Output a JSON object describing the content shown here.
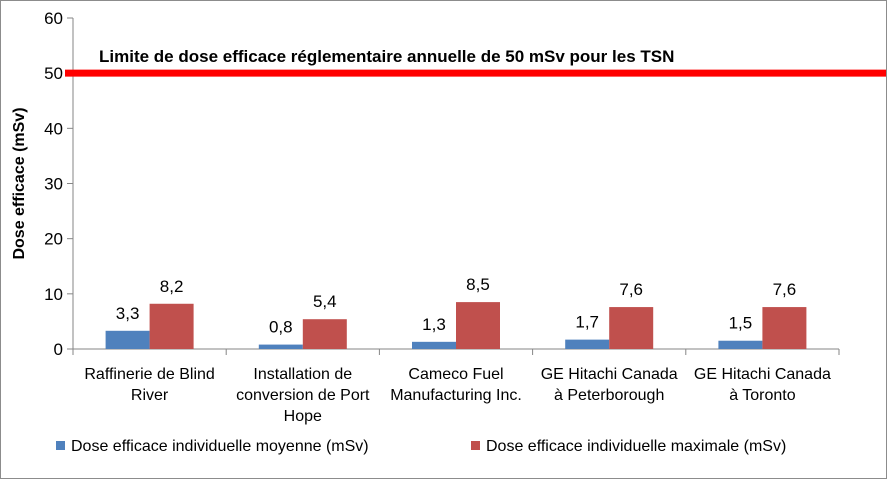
{
  "chart_data": {
    "type": "bar",
    "title": "",
    "xlabel": "",
    "ylabel": "Dose efficace  (mSv)",
    "ylim": [
      0,
      60
    ],
    "yticks": [
      0,
      10,
      20,
      30,
      40,
      50,
      60
    ],
    "grid": false,
    "legend_position": "bottom",
    "categories": [
      [
        "Raffinerie de Blind",
        "River"
      ],
      [
        "Installation de",
        "conversion de Port",
        "Hope"
      ],
      [
        "Cameco Fuel",
        "Manufacturing Inc."
      ],
      [
        "GE Hitachi Canada",
        "à Peterborough"
      ],
      [
        "GE Hitachi Canada",
        "à Toronto"
      ]
    ],
    "series": [
      {
        "name": "Dose efficace individuelle moyenne (mSv)",
        "color": "#4f81bd",
        "values": [
          3.3,
          0.8,
          1.3,
          1.7,
          1.5
        ],
        "labels": [
          "3,3",
          "0,8",
          "1,3",
          "1,7",
          "1,5"
        ]
      },
      {
        "name": "Dose efficace individuelle maximale (mSv)",
        "color": "#c0504d",
        "values": [
          8.2,
          5.4,
          8.5,
          7.6,
          7.6
        ],
        "labels": [
          "8,2",
          "5,4",
          "8,5",
          "7,6",
          "7,6"
        ]
      }
    ],
    "reference_line": {
      "value": 50,
      "color": "#ff0000",
      "label": "Limite de dose efficace réglementaire annuelle de 50 mSv pour  les TSN"
    }
  }
}
